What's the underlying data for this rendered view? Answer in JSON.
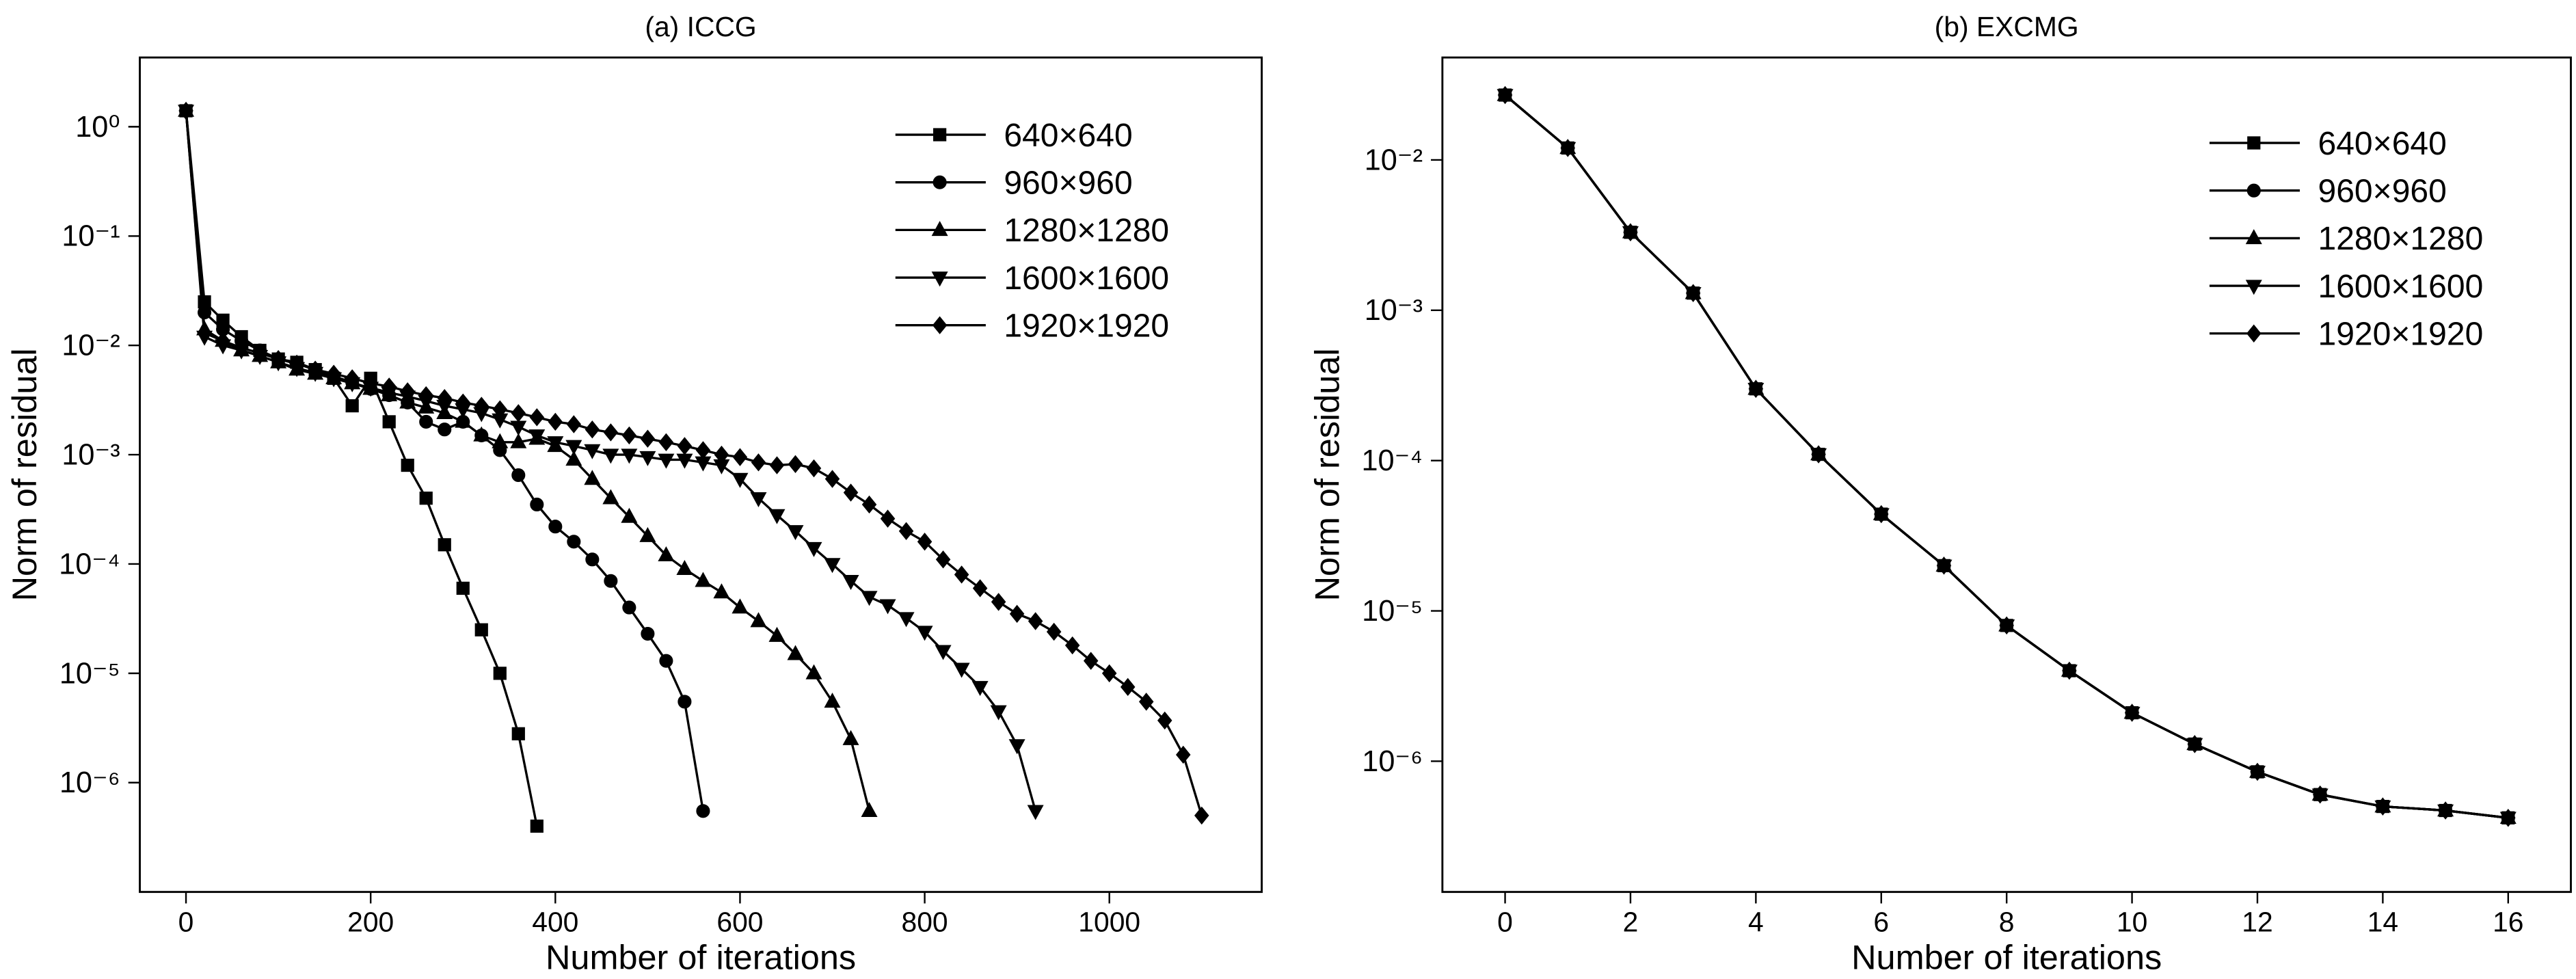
{
  "chart_data": [
    {
      "type": "line",
      "title": "(a) ICCG",
      "xlabel": "Number of iterations",
      "ylabel": "Norm of residual",
      "log_y": true,
      "legend": "upper right",
      "xlim": [
        -50,
        1165
      ],
      "xticks": [
        0,
        200,
        400,
        600,
        800,
        1000
      ],
      "ylim": [
        1e-07,
        4.3
      ],
      "yticks": [
        {
          "value": 1,
          "label": "10⁰"
        },
        {
          "value": 0.1,
          "label": "10⁻¹"
        },
        {
          "value": 0.01,
          "label": "10⁻²"
        },
        {
          "value": 0.001,
          "label": "10⁻³"
        },
        {
          "value": 0.0001,
          "label": "10⁻⁴"
        },
        {
          "value": 1e-05,
          "label": "10⁻⁵"
        },
        {
          "value": 1e-06,
          "label": "10⁻⁶"
        }
      ],
      "series": [
        {
          "name": "640×640",
          "color": "#000000",
          "marker": "square",
          "x": [
            0,
            20,
            40,
            60,
            80,
            100,
            120,
            140,
            160,
            180,
            200,
            220,
            240,
            260,
            280,
            300,
            320,
            340,
            360,
            380
          ],
          "values": [
            1.4,
            0.025,
            0.017,
            0.012,
            0.009,
            0.0075,
            0.007,
            0.006,
            0.005,
            0.0028,
            0.005,
            0.002,
            0.0008,
            0.0004,
            0.00015,
            6e-05,
            2.5e-05,
            1e-05,
            2.8e-06,
            4e-07
          ]
        },
        {
          "name": "960×960",
          "color": "#000000",
          "marker": "circle",
          "x": [
            0,
            20,
            40,
            60,
            80,
            100,
            120,
            140,
            160,
            180,
            200,
            220,
            240,
            260,
            280,
            300,
            320,
            340,
            360,
            380,
            400,
            420,
            440,
            460,
            480,
            500,
            520,
            540,
            560
          ],
          "values": [
            1.4,
            0.02,
            0.014,
            0.011,
            0.009,
            0.0075,
            0.0068,
            0.006,
            0.0052,
            0.0046,
            0.004,
            0.0035,
            0.003,
            0.002,
            0.0017,
            0.002,
            0.0015,
            0.0011,
            0.00065,
            0.00035,
            0.00022,
            0.00016,
            0.00011,
            7e-05,
            4e-05,
            2.3e-05,
            1.3e-05,
            5.5e-06,
            5.5e-07
          ]
        },
        {
          "name": "1280×1280",
          "color": "#000000",
          "marker": "triangle-up",
          "x": [
            0,
            20,
            40,
            60,
            80,
            100,
            120,
            140,
            160,
            180,
            200,
            220,
            240,
            260,
            280,
            300,
            320,
            340,
            360,
            380,
            400,
            420,
            440,
            460,
            480,
            500,
            520,
            540,
            560,
            580,
            600,
            620,
            640,
            660,
            680,
            700,
            720,
            740
          ],
          "values": [
            1.4,
            0.014,
            0.011,
            0.009,
            0.008,
            0.007,
            0.006,
            0.0055,
            0.005,
            0.0045,
            0.004,
            0.0035,
            0.003,
            0.0027,
            0.0024,
            0.002,
            0.0015,
            0.0013,
            0.0013,
            0.0014,
            0.0012,
            0.0009,
            0.0006,
            0.0004,
            0.00027,
            0.00018,
            0.00012,
            9e-05,
            7e-05,
            5.5e-05,
            4e-05,
            3e-05,
            2.2e-05,
            1.5e-05,
            1e-05,
            5.5e-06,
            2.5e-06,
            5.5e-07
          ]
        },
        {
          "name": "1600×1600",
          "color": "#000000",
          "marker": "triangle-down",
          "x": [
            0,
            20,
            40,
            60,
            80,
            100,
            120,
            140,
            160,
            180,
            200,
            220,
            240,
            260,
            280,
            300,
            320,
            340,
            360,
            380,
            400,
            420,
            440,
            460,
            480,
            500,
            520,
            540,
            560,
            580,
            600,
            620,
            640,
            660,
            680,
            700,
            720,
            740,
            760,
            780,
            800,
            820,
            840,
            860,
            880,
            900,
            920
          ],
          "values": [
            1.4,
            0.012,
            0.01,
            0.009,
            0.008,
            0.007,
            0.0062,
            0.0056,
            0.005,
            0.0045,
            0.0041,
            0.0037,
            0.0034,
            0.0031,
            0.0028,
            0.0026,
            0.0024,
            0.0021,
            0.0018,
            0.0015,
            0.0013,
            0.0012,
            0.0011,
            0.001,
            0.001,
            0.00095,
            0.0009,
            0.0009,
            0.00085,
            0.0008,
            0.0006,
            0.0004,
            0.00028,
            0.0002,
            0.00014,
            0.0001,
            7e-05,
            5e-05,
            4.2e-05,
            3.2e-05,
            2.4e-05,
            1.6e-05,
            1.1e-05,
            7.5e-06,
            4.5e-06,
            2.2e-06,
            5.5e-07
          ]
        },
        {
          "name": "1920×1920",
          "color": "#000000",
          "marker": "diamond",
          "x": [
            0,
            20,
            40,
            60,
            80,
            100,
            120,
            140,
            160,
            180,
            200,
            220,
            240,
            260,
            280,
            300,
            320,
            340,
            360,
            380,
            400,
            420,
            440,
            460,
            480,
            500,
            520,
            540,
            560,
            580,
            600,
            620,
            640,
            660,
            680,
            700,
            720,
            740,
            760,
            780,
            800,
            820,
            840,
            860,
            880,
            900,
            920,
            940,
            960,
            980,
            1000,
            1020,
            1040,
            1060,
            1080,
            1100
          ],
          "values": [
            1.4,
            0.013,
            0.011,
            0.0095,
            0.0085,
            0.0075,
            0.0068,
            0.006,
            0.0055,
            0.005,
            0.0045,
            0.0042,
            0.0038,
            0.0035,
            0.0033,
            0.003,
            0.0028,
            0.0026,
            0.0024,
            0.0022,
            0.002,
            0.0019,
            0.0017,
            0.0016,
            0.0015,
            0.0014,
            0.0013,
            0.0012,
            0.0011,
            0.001,
            0.00095,
            0.00085,
            0.0008,
            0.00082,
            0.00075,
            0.0006,
            0.00045,
            0.00035,
            0.00026,
            0.0002,
            0.00016,
            0.00011,
            8e-05,
            6e-05,
            4.5e-05,
            3.5e-05,
            3e-05,
            2.4e-05,
            1.8e-05,
            1.3e-05,
            1e-05,
            7.5e-06,
            5.5e-06,
            3.7e-06,
            1.8e-06,
            5e-07
          ]
        }
      ]
    },
    {
      "type": "line",
      "title": "(b) EXCMG",
      "xlabel": "Number of iterations",
      "ylabel": "Norm of residual",
      "log_y": true,
      "legend": "upper right",
      "xlim": [
        -1,
        17
      ],
      "xticks": [
        0,
        2,
        4,
        6,
        8,
        10,
        12,
        14,
        16
      ],
      "ylim": [
        1.35e-07,
        0.048
      ],
      "yticks": [
        {
          "value": 0.01,
          "label": "10⁻²"
        },
        {
          "value": 0.001,
          "label": "10⁻³"
        },
        {
          "value": 0.0001,
          "label": "10⁻⁴"
        },
        {
          "value": 1e-05,
          "label": "10⁻⁵"
        },
        {
          "value": 1e-06,
          "label": "10⁻⁶"
        }
      ],
      "series": [
        {
          "name": "640×640",
          "color": "#000000",
          "marker": "square",
          "x": [
            0,
            1,
            2,
            3,
            4,
            5,
            6,
            7,
            8,
            9,
            10,
            11,
            12,
            13,
            14,
            15,
            16
          ],
          "values": [
            0.027,
            0.012,
            0.0033,
            0.0013,
            0.0003,
            0.00011,
            4.4e-05,
            2e-05,
            8e-06,
            4e-06,
            2.1e-06,
            1.3e-06,
            8.5e-07,
            6e-07,
            5e-07,
            4.7e-07,
            4.2e-07
          ]
        },
        {
          "name": "960×960",
          "color": "#000000",
          "marker": "circle",
          "x": [
            0,
            1,
            2,
            3,
            4,
            5,
            6,
            7,
            8,
            9,
            10,
            11,
            12,
            13,
            14,
            15,
            16
          ],
          "values": [
            0.027,
            0.012,
            0.0033,
            0.0013,
            0.0003,
            0.00011,
            4.4e-05,
            2e-05,
            8e-06,
            4e-06,
            2.1e-06,
            1.3e-06,
            8.5e-07,
            6e-07,
            5e-07,
            4.7e-07,
            4.2e-07
          ]
        },
        {
          "name": "1280×1280",
          "color": "#000000",
          "marker": "triangle-up",
          "x": [
            0,
            1,
            2,
            3,
            4,
            5,
            6,
            7,
            8,
            9,
            10,
            11,
            12,
            13,
            14,
            15,
            16
          ],
          "values": [
            0.027,
            0.012,
            0.0033,
            0.0013,
            0.0003,
            0.00011,
            4.4e-05,
            2e-05,
            8e-06,
            4e-06,
            2.1e-06,
            1.3e-06,
            8.5e-07,
            6e-07,
            5e-07,
            4.7e-07,
            4.2e-07
          ]
        },
        {
          "name": "1600×1600",
          "color": "#000000",
          "marker": "triangle-down",
          "x": [
            0,
            1,
            2,
            3,
            4,
            5,
            6,
            7,
            8,
            9,
            10,
            11,
            12,
            13,
            14,
            15,
            16
          ],
          "values": [
            0.027,
            0.012,
            0.0033,
            0.0013,
            0.0003,
            0.00011,
            4.4e-05,
            2e-05,
            8e-06,
            4e-06,
            2.1e-06,
            1.3e-06,
            8.5e-07,
            6e-07,
            5e-07,
            4.7e-07,
            4.2e-07
          ]
        },
        {
          "name": "1920×1920",
          "color": "#000000",
          "marker": "diamond",
          "x": [
            0,
            1,
            2,
            3,
            4,
            5,
            6,
            7,
            8,
            9,
            10,
            11,
            12,
            13,
            14,
            15,
            16
          ],
          "values": [
            0.027,
            0.012,
            0.0033,
            0.0013,
            0.0003,
            0.00011,
            4.4e-05,
            2e-05,
            8e-06,
            4e-06,
            2.1e-06,
            1.3e-06,
            8.5e-07,
            6e-07,
            5e-07,
            4.7e-07,
            4.2e-07
          ]
        }
      ]
    }
  ]
}
